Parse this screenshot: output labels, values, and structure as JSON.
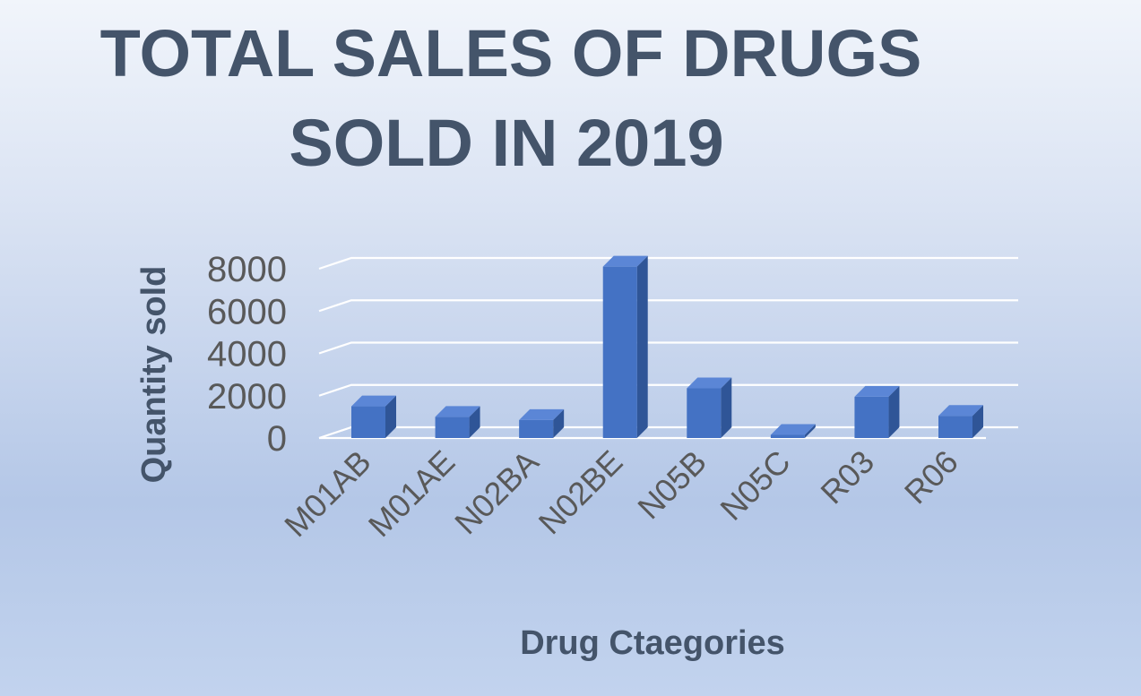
{
  "chart_data": {
    "type": "bar",
    "style": "3d-column",
    "title_lines": [
      "TOTAL SALES OF DRUGS",
      "SOLD IN 2019"
    ],
    "xlabel": "Drug Ctaegories",
    "ylabel": "Quantity sold",
    "categories": [
      "M01AB",
      "M01AE",
      "N02BA",
      "N02BE",
      "N05B",
      "N05C",
      "R03",
      "R06"
    ],
    "values": [
      1500,
      1000,
      850,
      8100,
      2350,
      150,
      1950,
      1050
    ],
    "yticks": [
      "0",
      "2000",
      "4000",
      "6000",
      "8000"
    ],
    "ylim": [
      0,
      8000
    ],
    "grid": true,
    "legend": "none",
    "colors": {
      "bar_front": "#4472c4",
      "bar_side": "#2f5597",
      "bar_top": "#5b86d6",
      "title": "#44546a",
      "tick_text": "#595959",
      "grid": "#ffffff"
    }
  }
}
